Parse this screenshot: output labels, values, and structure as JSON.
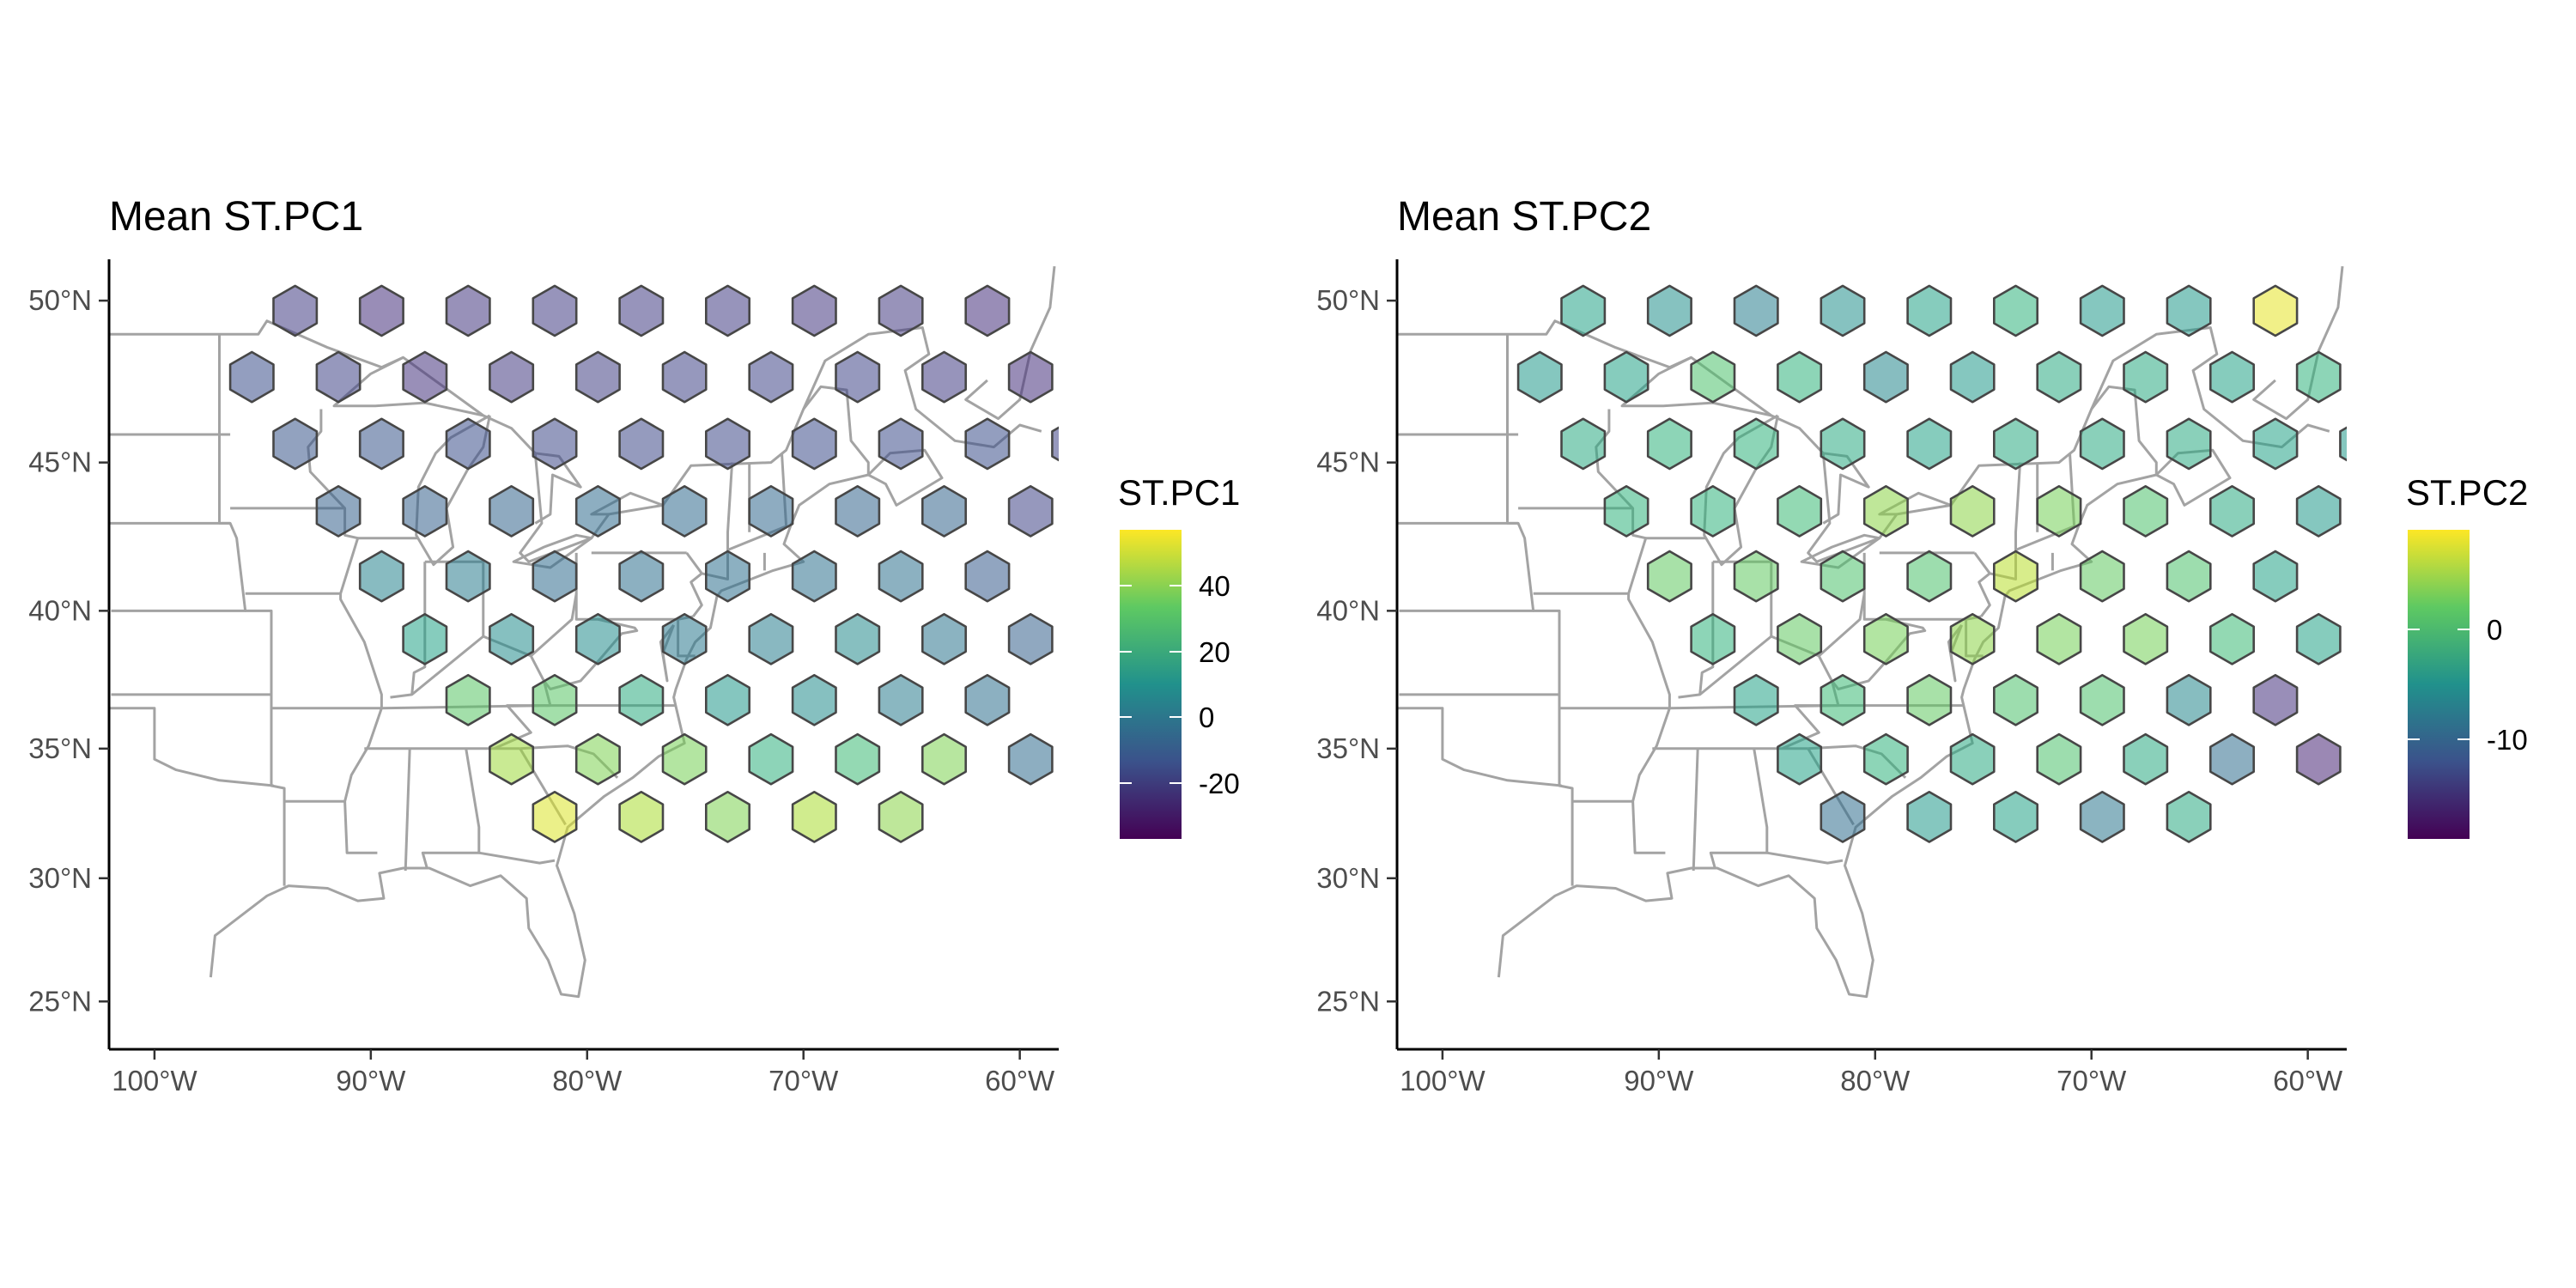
{
  "panels": [
    {
      "title": "Mean ST.PC1",
      "legend": {
        "title": "ST.PC1",
        "range": [
          -37,
          57
        ],
        "ticks": [
          {
            "value": 40,
            "label": "40"
          },
          {
            "value": 20,
            "label": "20"
          },
          {
            "value": 0,
            "label": "0"
          },
          {
            "value": -20,
            "label": "-20"
          }
        ]
      },
      "hex_values": [
        -20,
        -24,
        -22,
        -20,
        -20,
        -20,
        -22,
        -21,
        -24,
        -14,
        -18,
        -23,
        -21,
        -19,
        -18,
        -17,
        -17,
        -20,
        -24,
        -12,
        -12,
        -14,
        -16,
        -16,
        -16,
        -15,
        -15,
        -14,
        -18,
        -8,
        -8,
        -7,
        -4,
        -5,
        -6,
        -7,
        -7,
        -18,
        5,
        2,
        -4,
        -3,
        -3,
        -2,
        -2,
        -10,
        17,
        9,
        9,
        1,
        3,
        8,
        -1,
        -8,
        32,
        32,
        21,
        13,
        9,
        2,
        -3,
        43,
        38,
        37,
        23,
        27,
        38,
        -4,
        52,
        45,
        38,
        45,
        40
      ],
      "map_colorscale": "viridis"
    },
    {
      "title": "Mean ST.PC2",
      "legend": {
        "title": "ST.PC2",
        "range": [
          -19,
          9
        ],
        "ticks": [
          {
            "value": 0,
            "label": "0"
          },
          {
            "value": -10,
            "label": "-10"
          }
        ]
      },
      "hex_values": [
        -3,
        -5,
        -7,
        -5,
        -3,
        -1,
        -4,
        -4,
        8,
        -4,
        -3,
        1,
        -1,
        -6,
        -4,
        -2,
        -2,
        -3,
        -1,
        -2,
        -1,
        -1,
        -2,
        -3,
        -2,
        -2,
        -2,
        -3,
        -4,
        -1,
        -1,
        0,
        4,
        4,
        3,
        1,
        -2,
        -4,
        2,
        2,
        1,
        1,
        6,
        2,
        1,
        -3,
        -1,
        2,
        3,
        4,
        3,
        3,
        0,
        -3,
        -3,
        0,
        2,
        1,
        1,
        -6,
        -15,
        -3,
        -1,
        -2,
        1,
        -2,
        -9,
        -16,
        -9,
        -4,
        -3,
        -8,
        -2
      ],
      "map_colorscale": "viridis"
    }
  ],
  "axes": {
    "lat_ticks": [
      {
        "value": 50,
        "label": "50°N"
      },
      {
        "value": 45,
        "label": "45°N"
      },
      {
        "value": 40,
        "label": "40°N"
      },
      {
        "value": 35,
        "label": "35°N"
      },
      {
        "value": 30,
        "label": "30°N"
      },
      {
        "value": 25,
        "label": "25°N"
      }
    ],
    "lon_ticks": [
      {
        "value": -100,
        "label": "100°W"
      },
      {
        "value": -90,
        "label": "90°W"
      },
      {
        "value": -80,
        "label": "80°W"
      },
      {
        "value": -70,
        "label": "70°W"
      },
      {
        "value": -60,
        "label": "60°W"
      }
    ],
    "lon_range": [
      -102.1,
      -58.2
    ],
    "lat_range": [
      23.0,
      51.2
    ],
    "projection": "mercator"
  },
  "hex_grid": {
    "rows": [
      {
        "lat": 49.7,
        "lons": [
          -93.5,
          -89.5,
          -85.5,
          -81.5,
          -77.5,
          -73.5,
          -69.5,
          -65.5,
          -61.5
        ]
      },
      {
        "lat": 47.7,
        "lons": [
          -95.5,
          -91.5,
          -87.5,
          -83.5,
          -79.5,
          -75.5,
          -71.5,
          -67.5,
          -63.5,
          -59.5
        ]
      },
      {
        "lat": 45.6,
        "lons": [
          -93.5,
          -89.5,
          -85.5,
          -81.5,
          -77.5,
          -73.5,
          -69.5,
          -65.5,
          -61.5,
          -57.5
        ]
      },
      {
        "lat": 43.4,
        "lons": [
          -91.5,
          -87.5,
          -83.5,
          -79.5,
          -75.5,
          -71.5,
          -67.5,
          -63.5,
          -59.5
        ]
      },
      {
        "lat": 41.2,
        "lons": [
          -89.5,
          -85.5,
          -81.5,
          -77.5,
          -73.5,
          -69.5,
          -65.5,
          -61.5
        ]
      },
      {
        "lat": 39.0,
        "lons": [
          -87.5,
          -83.5,
          -79.5,
          -75.5,
          -71.5,
          -67.5,
          -63.5,
          -59.5
        ]
      },
      {
        "lat": 36.8,
        "lons": [
          -85.5,
          -81.5,
          -77.5,
          -73.5,
          -69.5,
          -65.5,
          -61.5
        ]
      },
      {
        "lat": 34.6,
        "lons": [
          -83.5,
          -79.5,
          -75.5,
          -71.5,
          -67.5,
          -63.5,
          -59.5
        ]
      },
      {
        "lat": 32.4,
        "lons": [
          -81.5,
          -77.5,
          -73.5,
          -69.5,
          -65.5
        ]
      }
    ]
  }
}
